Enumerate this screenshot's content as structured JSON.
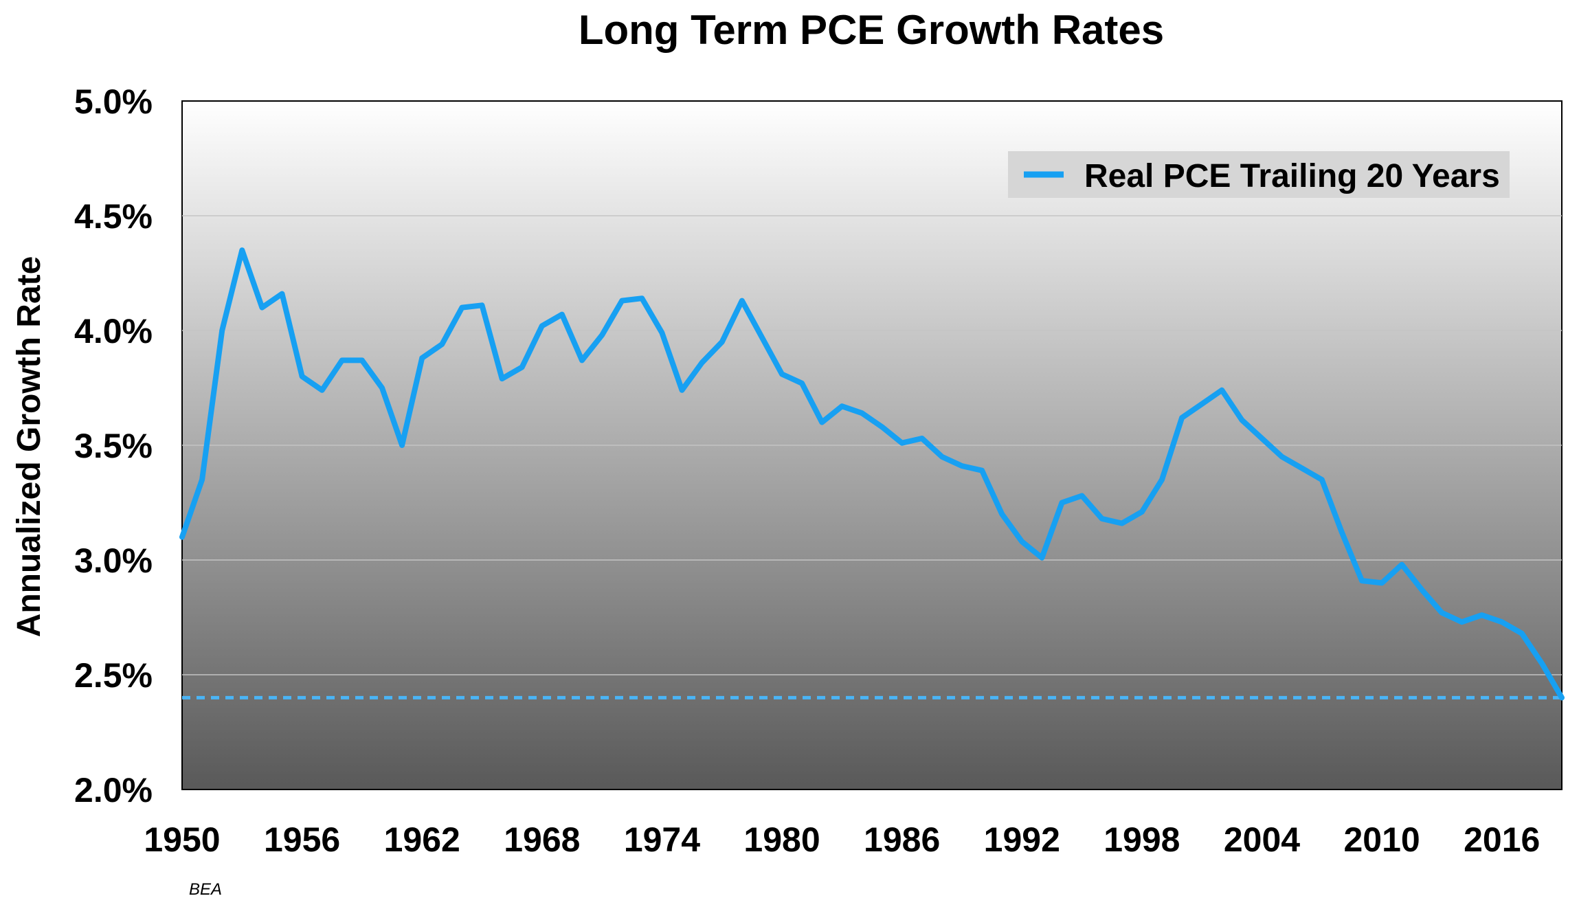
{
  "chart_data": {
    "type": "line",
    "title": "Long Term PCE Growth Rates",
    "xlabel": "",
    "ylabel": "Annualized Growth Rate",
    "source": "BEA",
    "ylim": [
      2.0,
      5.0
    ],
    "xlim": [
      1950,
      2019
    ],
    "yticks": [
      2.0,
      2.5,
      3.0,
      3.5,
      4.0,
      4.5,
      5.0
    ],
    "ytick_labels": [
      "2.0%",
      "2.5%",
      "3.0%",
      "3.5%",
      "4.0%",
      "4.5%",
      "5.0%"
    ],
    "xticks": [
      1950,
      1956,
      1962,
      1968,
      1974,
      1980,
      1986,
      1992,
      1998,
      2004,
      2010,
      2016
    ],
    "xtick_labels": [
      "1950",
      "1956",
      "1962",
      "1968",
      "1974",
      "1980",
      "1986",
      "1992",
      "1998",
      "2004",
      "2010",
      "2016"
    ],
    "grid": true,
    "legend_position": "top-right",
    "colors": {
      "series": "#17a0f2",
      "reference": "#4ab4f5",
      "legend_bg": "#d6d6d6"
    },
    "series": [
      {
        "name": "Real PCE Trailing 20 Years",
        "x": [
          1950,
          1951,
          1952,
          1953,
          1954,
          1955,
          1956,
          1957,
          1958,
          1959,
          1960,
          1961,
          1962,
          1963,
          1964,
          1965,
          1966,
          1967,
          1968,
          1969,
          1970,
          1971,
          1972,
          1973,
          1974,
          1975,
          1976,
          1977,
          1978,
          1979,
          1980,
          1981,
          1982,
          1983,
          1984,
          1985,
          1986,
          1987,
          1988,
          1989,
          1990,
          1991,
          1992,
          1993,
          1994,
          1995,
          1996,
          1997,
          1998,
          1999,
          2000,
          2001,
          2002,
          2003,
          2004,
          2005,
          2006,
          2007,
          2008,
          2009,
          2010,
          2011,
          2012,
          2013,
          2014,
          2015,
          2016,
          2017,
          2018,
          2019
        ],
        "values": [
          3.1,
          3.35,
          4.0,
          4.35,
          4.1,
          4.16,
          3.8,
          3.74,
          3.87,
          3.87,
          3.75,
          3.5,
          3.88,
          3.94,
          4.1,
          4.11,
          3.79,
          3.84,
          4.02,
          4.07,
          3.87,
          3.98,
          4.13,
          4.14,
          3.99,
          3.74,
          3.86,
          3.95,
          4.13,
          3.97,
          3.81,
          3.77,
          3.6,
          3.67,
          3.64,
          3.58,
          3.51,
          3.53,
          3.45,
          3.41,
          3.39,
          3.2,
          3.08,
          3.01,
          3.25,
          3.28,
          3.18,
          3.16,
          3.21,
          3.35,
          3.62,
          3.68,
          3.74,
          3.61,
          3.53,
          3.45,
          3.4,
          3.35,
          3.12,
          2.91,
          2.9,
          2.98,
          2.87,
          2.77,
          2.73,
          2.76,
          2.73,
          2.68,
          2.55,
          2.4
        ]
      }
    ],
    "reference_lines": [
      {
        "axis": "y",
        "value": 2.4,
        "style": "dashed"
      }
    ]
  }
}
